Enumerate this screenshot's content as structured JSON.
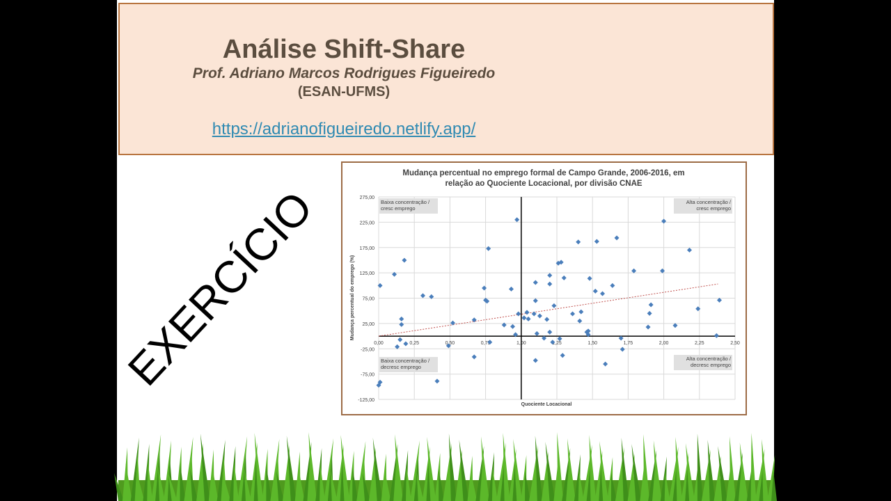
{
  "header": {
    "title": "Análise Shift-Share",
    "author": "Prof. Adriano Marcos Rodrigues Figueiredo",
    "institution": "(ESAN-UFMS)",
    "link": "https://adrianofigueiredo.netlify.app/"
  },
  "side_label": "EXERCÍCIO",
  "chart_data": {
    "type": "scatter",
    "title": [
      "Mudança percentual no emprego formal de Campo Grande, 2006-2016, em",
      "relação ao Quociente Locacional, por divisão CNAE"
    ],
    "x_label": "Quociente Locacional",
    "y_label": "Mudança percentual do emprego (%)",
    "xlim": [
      0,
      2.5
    ],
    "ylim": [
      -125,
      275
    ],
    "xticks": [
      {
        "value": 0,
        "label": "0,00"
      },
      {
        "value": 0.25,
        "label": "0,25"
      },
      {
        "value": 0.5,
        "label": "0,50"
      },
      {
        "value": 0.75,
        "label": "0,75"
      },
      {
        "value": 1,
        "label": "1,00"
      },
      {
        "value": 1.25,
        "label": "1,25"
      },
      {
        "value": 1.5,
        "label": "1,50"
      },
      {
        "value": 1.75,
        "label": "1,75"
      },
      {
        "value": 2,
        "label": "2,00"
      },
      {
        "value": 2.25,
        "label": "2,25"
      },
      {
        "value": 2.5,
        "label": "2,50"
      }
    ],
    "yticks": [
      {
        "value": -125,
        "label": "-125,00"
      },
      {
        "value": -75,
        "label": "-75,00"
      },
      {
        "value": -25,
        "label": "-25,00"
      },
      {
        "value": 25,
        "label": "25,00"
      },
      {
        "value": 75,
        "label": "75,00"
      },
      {
        "value": 125,
        "label": "125,00"
      },
      {
        "value": 175,
        "label": "175,00"
      },
      {
        "value": 225,
        "label": "225,00"
      },
      {
        "value": 275,
        "label": "275,00"
      }
    ],
    "grid": true,
    "vline": 1,
    "color": "#4a7ebb",
    "series": [
      {
        "name": null,
        "color": "#4a7ebb",
        "x": [
          0.01,
          0,
          0.01,
          0.11,
          0.13,
          0.15,
          0.16,
          0.16,
          0.18,
          0.19,
          0.31,
          0.37,
          0.41,
          0.49,
          0.52,
          0.67,
          0.67,
          0.74,
          0.75,
          0.76,
          0.77,
          0.78,
          0.88,
          0.93,
          0.94,
          0.96,
          0.97,
          0.98,
          1.02,
          1.04,
          1.05,
          1.09,
          1.1,
          1.1,
          1.1,
          1.11,
          1.13,
          1.16,
          1.18,
          1.2,
          1.2,
          1.2,
          1.23,
          1.22,
          1.26,
          1.28,
          1.27,
          1.29,
          1.3,
          1.36,
          1.4,
          1.41,
          1.42,
          1.46,
          1.47,
          1.47,
          1.48,
          1.52,
          1.53,
          1.57,
          1.59,
          1.64,
          1.67,
          1.7,
          1.71,
          1.79,
          1.89,
          1.9,
          1.91,
          1.99,
          2,
          2.08,
          2.18,
          2.24,
          2.37,
          2.39
        ],
        "values": [
          100,
          -97,
          -91,
          122,
          -21,
          -7,
          23,
          34,
          150,
          -15,
          80,
          78,
          -89,
          -19,
          26,
          32,
          -41,
          95,
          71,
          69,
          173,
          -12,
          22,
          93,
          19,
          3,
          230,
          44,
          36,
          47,
          34,
          44,
          106,
          -48,
          70,
          5,
          40,
          -4,
          33,
          8,
          120,
          103,
          60,
          -12,
          144,
          146,
          -5,
          -38,
          115,
          44,
          186,
          30,
          48,
          8,
          10,
          3,
          114,
          89,
          187,
          84,
          -55,
          100,
          194,
          -4,
          -26,
          129,
          18,
          45,
          62,
          129,
          227,
          21,
          170,
          54,
          1,
          71
        ]
      }
    ],
    "trendline": {
      "x": [
        0,
        2.38
      ],
      "values": [
        0,
        103
      ],
      "color": "#c0504d"
    },
    "annotations": [
      [
        "Baixa concentração /",
        "cresc emprego"
      ],
      [
        "Alta concentração /",
        "cresc emprego"
      ],
      [
        "Baixa concentração /",
        "decresc emprego"
      ],
      [
        "Alta concentração /",
        "decresc emprego"
      ]
    ]
  }
}
